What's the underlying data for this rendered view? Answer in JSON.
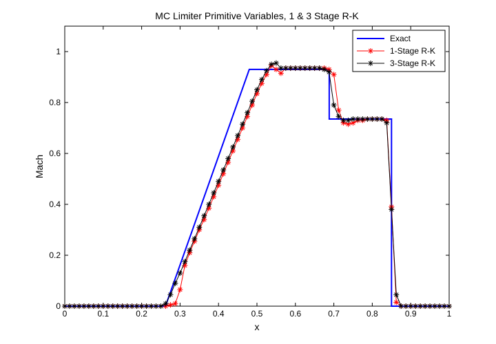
{
  "chart_data": {
    "type": "line",
    "title": "MC Limiter Primitive Variables, 1 & 3 Stage R-K",
    "xlabel": "x",
    "ylabel": "Mach",
    "xlim": [
      0,
      1
    ],
    "ylim": [
      0,
      1.1
    ],
    "xticks": [
      0,
      0.1,
      0.2,
      0.3,
      0.4,
      0.5,
      0.6,
      0.7,
      0.8,
      0.9,
      1
    ],
    "xtick_labels": [
      "0",
      "0.1",
      "0.2",
      "0.3",
      "0.4",
      "0.5",
      "0.6",
      "0.7",
      "0.8",
      "0.9",
      "1"
    ],
    "yticks": [
      0,
      0.2,
      0.4,
      0.6,
      0.8,
      1
    ],
    "ytick_labels": [
      "0",
      "0.2",
      "0.4",
      "0.6",
      "0.8",
      "1"
    ],
    "grid": false,
    "legend_position": "top-right",
    "series": [
      {
        "name": "Exact",
        "color": "#0000ff",
        "marker": "none",
        "x": [
          0,
          0.262,
          0.48,
          0.688,
          0.688,
          0.85,
          0.85,
          1
        ],
        "y": [
          0,
          0,
          0.93,
          0.93,
          0.735,
          0.735,
          0,
          0
        ]
      },
      {
        "name": "1-Stage R-K",
        "color": "#ff0000",
        "marker": "asterisk",
        "x": [
          0,
          0.0125,
          0.025,
          0.0375,
          0.05,
          0.0625,
          0.075,
          0.0875,
          0.1,
          0.1125,
          0.125,
          0.1375,
          0.15,
          0.1625,
          0.175,
          0.1875,
          0.2,
          0.2125,
          0.225,
          0.2375,
          0.25,
          0.2625,
          0.275,
          0.2875,
          0.3,
          0.3125,
          0.325,
          0.3375,
          0.35,
          0.3625,
          0.375,
          0.3875,
          0.4,
          0.4125,
          0.425,
          0.4375,
          0.45,
          0.4625,
          0.475,
          0.4875,
          0.5,
          0.5125,
          0.525,
          0.5375,
          0.55,
          0.5625,
          0.575,
          0.5875,
          0.6,
          0.6125,
          0.625,
          0.6375,
          0.65,
          0.6625,
          0.675,
          0.6875,
          0.7,
          0.7125,
          0.725,
          0.7375,
          0.75,
          0.7625,
          0.775,
          0.7875,
          0.8,
          0.8125,
          0.825,
          0.8375,
          0.85,
          0.8625,
          0.875,
          0.8875,
          0.9,
          0.9125,
          0.925,
          0.9375,
          0.95,
          0.9625,
          0.975,
          0.9875,
          1
        ],
        "y": [
          0,
          0,
          0,
          0,
          0,
          0,
          0,
          0,
          0,
          0,
          0,
          0,
          0,
          0,
          0,
          0,
          0,
          0,
          0,
          0,
          0,
          0,
          0.005,
          0.01,
          0.065,
          0.16,
          0.21,
          0.255,
          0.3,
          0.34,
          0.385,
          0.43,
          0.475,
          0.52,
          0.565,
          0.61,
          0.655,
          0.7,
          0.745,
          0.79,
          0.835,
          0.875,
          0.91,
          0.945,
          0.93,
          0.915,
          0.935,
          0.935,
          0.935,
          0.935,
          0.935,
          0.935,
          0.935,
          0.935,
          0.935,
          0.93,
          0.91,
          0.77,
          0.72,
          0.715,
          0.72,
          0.73,
          0.73,
          0.735,
          0.735,
          0.735,
          0.735,
          0.73,
          0.39,
          0.015,
          0,
          0,
          0,
          0,
          0,
          0,
          0,
          0,
          0,
          0,
          0
        ]
      },
      {
        "name": "3-Stage R-K",
        "color": "#000000",
        "marker": "asterisk",
        "x": [
          0,
          0.0125,
          0.025,
          0.0375,
          0.05,
          0.0625,
          0.075,
          0.0875,
          0.1,
          0.1125,
          0.125,
          0.1375,
          0.15,
          0.1625,
          0.175,
          0.1875,
          0.2,
          0.2125,
          0.225,
          0.2375,
          0.25,
          0.2625,
          0.275,
          0.2875,
          0.3,
          0.3125,
          0.325,
          0.3375,
          0.35,
          0.3625,
          0.375,
          0.3875,
          0.4,
          0.4125,
          0.425,
          0.4375,
          0.45,
          0.4625,
          0.475,
          0.4875,
          0.5,
          0.5125,
          0.525,
          0.5375,
          0.55,
          0.5625,
          0.575,
          0.5875,
          0.6,
          0.6125,
          0.625,
          0.6375,
          0.65,
          0.6625,
          0.675,
          0.6875,
          0.7,
          0.7125,
          0.725,
          0.7375,
          0.75,
          0.7625,
          0.775,
          0.7875,
          0.8,
          0.8125,
          0.825,
          0.8375,
          0.85,
          0.8625,
          0.875,
          0.8875,
          0.9,
          0.9125,
          0.925,
          0.9375,
          0.95,
          0.9625,
          0.975,
          0.9875,
          1
        ],
        "y": [
          0,
          0,
          0,
          0,
          0,
          0,
          0,
          0,
          0,
          0,
          0,
          0,
          0,
          0,
          0,
          0,
          0,
          0,
          0,
          0,
          0,
          0.01,
          0.045,
          0.09,
          0.13,
          0.175,
          0.22,
          0.265,
          0.31,
          0.355,
          0.4,
          0.445,
          0.49,
          0.535,
          0.58,
          0.625,
          0.67,
          0.715,
          0.76,
          0.805,
          0.85,
          0.89,
          0.925,
          0.95,
          0.955,
          0.935,
          0.935,
          0.935,
          0.935,
          0.935,
          0.935,
          0.935,
          0.935,
          0.935,
          0.93,
          0.92,
          0.79,
          0.745,
          0.73,
          0.73,
          0.735,
          0.735,
          0.735,
          0.735,
          0.735,
          0.735,
          0.735,
          0.72,
          0.38,
          0.045,
          0,
          0,
          0,
          0,
          0,
          0,
          0,
          0,
          0,
          0,
          0
        ]
      }
    ]
  }
}
